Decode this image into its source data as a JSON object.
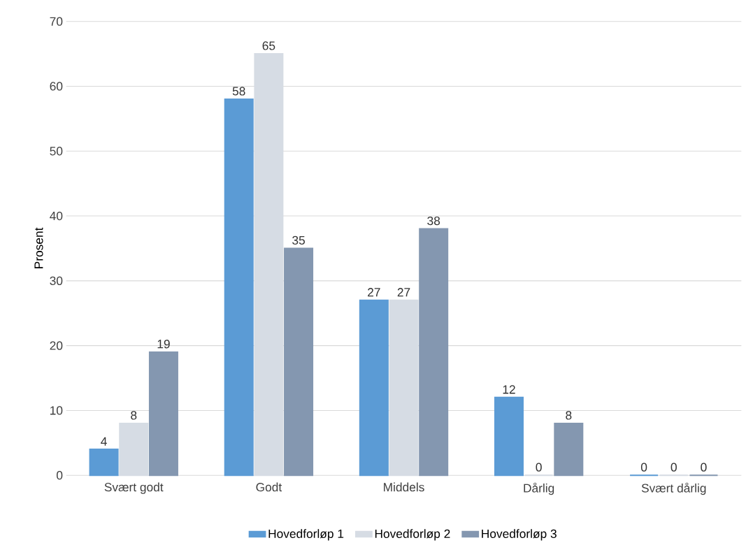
{
  "chart_data": {
    "type": "bar",
    "ylabel": "Prosent",
    "categories": [
      "Svært godt",
      "Godt",
      "Middels",
      "Dårlig",
      "Svært dårlig"
    ],
    "series": [
      {
        "name": "Hovedforløp 1",
        "color": "#5b9bd5",
        "values": [
          4,
          58,
          27,
          12,
          0
        ]
      },
      {
        "name": "Hovedforløp 2",
        "color": "#d6dce4",
        "values": [
          8,
          65,
          27,
          0,
          0
        ]
      },
      {
        "name": "Hovedforløp 3",
        "color": "#8497b0",
        "values": [
          19,
          35,
          38,
          8,
          0
        ]
      }
    ],
    "ylim": [
      0,
      70
    ],
    "yticks": [
      0,
      10,
      20,
      30,
      40,
      50,
      60,
      70
    ],
    "grid": "y",
    "legend": "bottom",
    "data_labels": true
  }
}
